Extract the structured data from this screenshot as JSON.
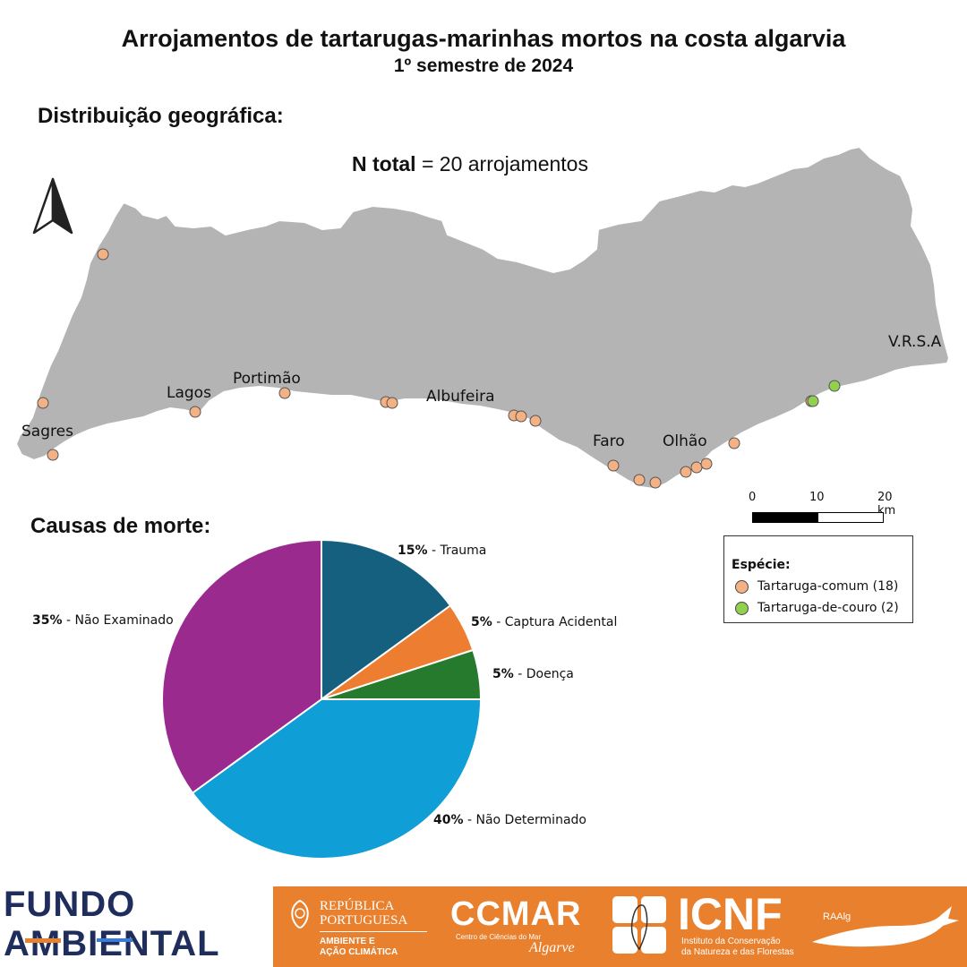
{
  "title": "Arrojamentos de tartarugas-marinhas mortos na costa algarvia",
  "subtitle": "1º semestre de 2024",
  "map_heading": "Distribuição geográfica:",
  "n_total": {
    "label": "N total",
    "value": "= 20 arrojamentos"
  },
  "places": {
    "sagres": "Sagres",
    "lagos": "Lagos",
    "portimao": "Portimão",
    "albufeira": "Albufeira",
    "faro": "Faro",
    "olhao": "Olhão",
    "vrsa": "V.R.S.A"
  },
  "scale": {
    "t0": "0",
    "t1": "10",
    "t2": "20 km"
  },
  "legend": {
    "title": "Espécie:",
    "items": [
      {
        "label": "Tartaruga-comum (18)",
        "color": "#f4b183"
      },
      {
        "label": "Tartaruga-de-couro (2)",
        "color": "#92d050"
      }
    ]
  },
  "causes_heading": "Causas de morte:",
  "chart_data": {
    "type": "pie",
    "slices": [
      {
        "pct": "15%",
        "label": "- Trauma",
        "value": 15,
        "color": "#16607f"
      },
      {
        "pct": "5%",
        "label": "- Captura Acidental",
        "value": 5,
        "color": "#ed7d31"
      },
      {
        "pct": "5%",
        "label": "- Doença",
        "value": 5,
        "color": "#267a2e"
      },
      {
        "pct": "40%",
        "label": "- Não Determinado",
        "value": 40,
        "color": "#0f9ed5"
      },
      {
        "pct": "35%",
        "label": "- Não Examinado",
        "value": 35,
        "color": "#9b2a8f"
      }
    ]
  },
  "colors": {
    "land": "#b4b4b4",
    "coast_stroke": "#ffffff"
  },
  "footer": {
    "fundo_1": "FUNDO",
    "fundo_2": "AMBIENTAL",
    "republica_1": "REPÚBLICA",
    "republica_2": "PORTUGUESA",
    "ambiente_1": "AMBIENTE E",
    "ambiente_2": "AÇÃO CLIMÁTICA",
    "ccmar": "CCMAR",
    "ccmar_sub": "Centro de Ciências do Mar",
    "ccmar_region": "Algarve",
    "icnf": "ICNF",
    "icnf_sub_1": "Instituto da Conservação",
    "icnf_sub_2": "da Natureza e das Florestas",
    "raalg": "RAAlg"
  }
}
